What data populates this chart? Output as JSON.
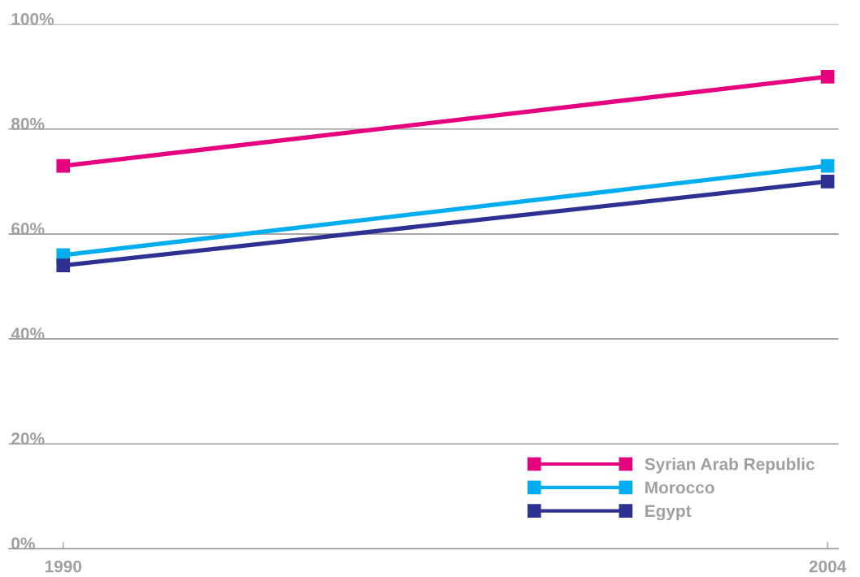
{
  "chart_data": {
    "type": "line",
    "x": [
      1990,
      2004
    ],
    "xlim": [
      1989.0,
      2004.2
    ],
    "xticks": [
      1990,
      2004
    ],
    "ylim": [
      0,
      100
    ],
    "yticks": [
      {
        "value": 0,
        "label": "0%"
      },
      {
        "value": 20,
        "label": "20%"
      },
      {
        "value": 40,
        "label": "40%"
      },
      {
        "value": 60,
        "label": "60%"
      },
      {
        "value": 80,
        "label": "80%"
      },
      {
        "value": 100,
        "label": "100%"
      }
    ],
    "grid": "y",
    "legend": "bottom right",
    "marker": "square",
    "line_style": "solid",
    "series": [
      {
        "name": "Syrian Arab Republic",
        "color": "#e5007e",
        "values": [
          73,
          90
        ]
      },
      {
        "name": "Morocco",
        "color": "#00aeef",
        "values": [
          56,
          73
        ]
      },
      {
        "name": "Egypt",
        "color": "#2e3192",
        "values": [
          54,
          70
        ]
      }
    ]
  }
}
